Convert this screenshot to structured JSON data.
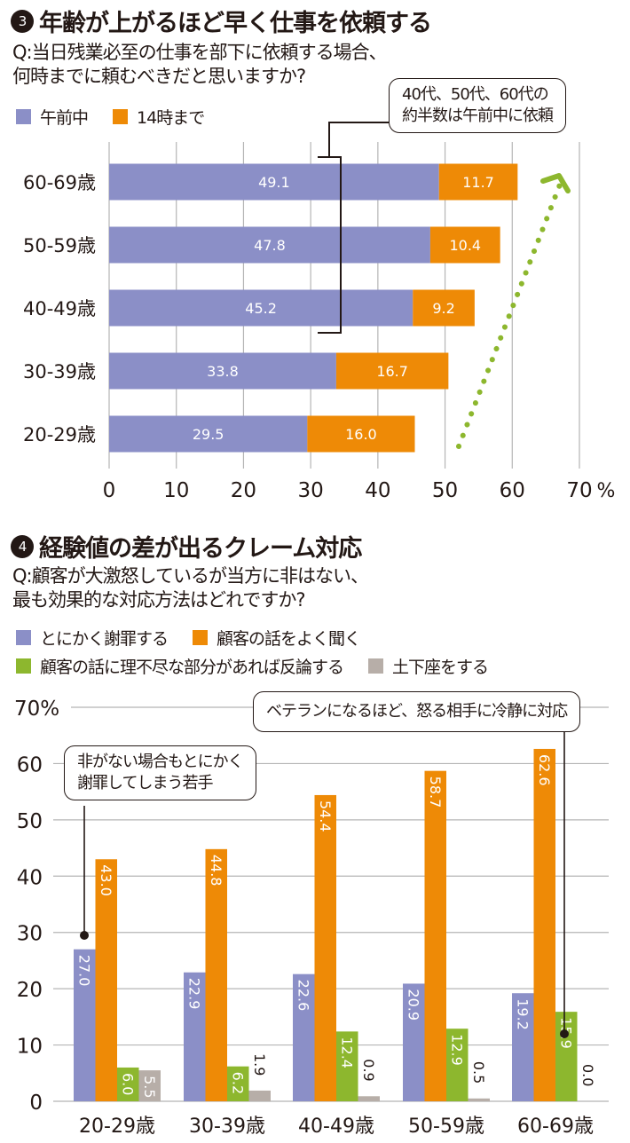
{
  "colors": {
    "purple": "#8b8fc7",
    "orange": "#ee8a06",
    "green": "#8db72e",
    "gray": "#b7aea8",
    "grid": "#b5b5b5",
    "ink": "#231815"
  },
  "section3": {
    "number": "3",
    "title": "年齢が上がるほど早く仕事を依頼する",
    "question_line1": "Q:当日残業必至の仕事を部下に依頼する場合、",
    "question_line2": "何時までに頼むべきだと思いますか?",
    "legend": [
      {
        "label": "午前中",
        "color": "#8b8fc7"
      },
      {
        "label": "14時まで",
        "color": "#ee8a06"
      }
    ],
    "callout_line1": "40代、50代、60代の",
    "callout_line2": "約半数は午前中に依頼"
  },
  "section4": {
    "number": "4",
    "title": "経験値の差が出るクレーム対応",
    "question_line1": "Q:顧客が大激怒しているが当方に非はない、",
    "question_line2": "最も効果的な対応方法はどれですか?",
    "legend": [
      {
        "label": "とにかく謝罪する",
        "color": "#8b8fc7"
      },
      {
        "label": "顧客の話をよく聞く",
        "color": "#ee8a06"
      },
      {
        "label": "顧客の話に理不尽な部分があれば反論する",
        "color": "#8db72e"
      },
      {
        "label": "土下座をする",
        "color": "#b7aea8"
      }
    ],
    "callout_left_line1": "非がない場合もとにかく",
    "callout_left_line2": "謝罪してしまう若手",
    "callout_right": "ベテランになるほど、怒る相手に冷静に対応"
  },
  "chart_data": [
    {
      "type": "bar",
      "orientation": "horizontal",
      "stacked": true,
      "title": "年齢が上がるほど早く仕事を依頼する",
      "categories": [
        "60-69歳",
        "50-59歳",
        "40-49歳",
        "30-39歳",
        "20-29歳"
      ],
      "series": [
        {
          "name": "午前中",
          "color": "#8b8fc7",
          "values": [
            49.1,
            47.8,
            45.2,
            33.8,
            29.5
          ]
        },
        {
          "name": "14時まで",
          "color": "#ee8a06",
          "values": [
            11.7,
            10.4,
            9.2,
            16.7,
            16.0
          ]
        }
      ],
      "xlim": [
        0,
        70
      ],
      "xticks": [
        "0",
        "10",
        "20",
        "30",
        "40",
        "50",
        "60",
        "70"
      ],
      "xunit": "%",
      "grid": true,
      "legend": "top-left",
      "annotation": "40代、50代、60代の約半数は午前中に依頼"
    },
    {
      "type": "bar",
      "orientation": "vertical",
      "stacked": false,
      "title": "経験値の差が出るクレーム対応",
      "categories": [
        "20-29歳",
        "30-39歳",
        "40-49歳",
        "50-59歳",
        "60-69歳"
      ],
      "series": [
        {
          "name": "とにかく謝罪する",
          "color": "#8b8fc7",
          "values": [
            27.0,
            22.9,
            22.6,
            20.9,
            19.2
          ]
        },
        {
          "name": "顧客の話をよく聞く",
          "color": "#ee8a06",
          "values": [
            43.0,
            44.8,
            54.4,
            58.7,
            62.6
          ]
        },
        {
          "name": "顧客の話に理不尽な部分があれば反論する",
          "color": "#8db72e",
          "values": [
            6.0,
            6.2,
            12.4,
            12.9,
            15.9
          ]
        },
        {
          "name": "土下座をする",
          "color": "#b7aea8",
          "values": [
            5.5,
            1.9,
            0.9,
            0.5,
            0.0
          ]
        }
      ],
      "ylim": [
        0,
        70
      ],
      "yticks": [
        "0",
        "10",
        "20",
        "30",
        "40",
        "50",
        "60",
        "70%"
      ],
      "grid": true,
      "legend": "top-left",
      "annotations": [
        "非がない場合もとにかく謝罪してしまう若手",
        "ベテランになるほど、怒る相手に冷静に対応"
      ]
    }
  ]
}
